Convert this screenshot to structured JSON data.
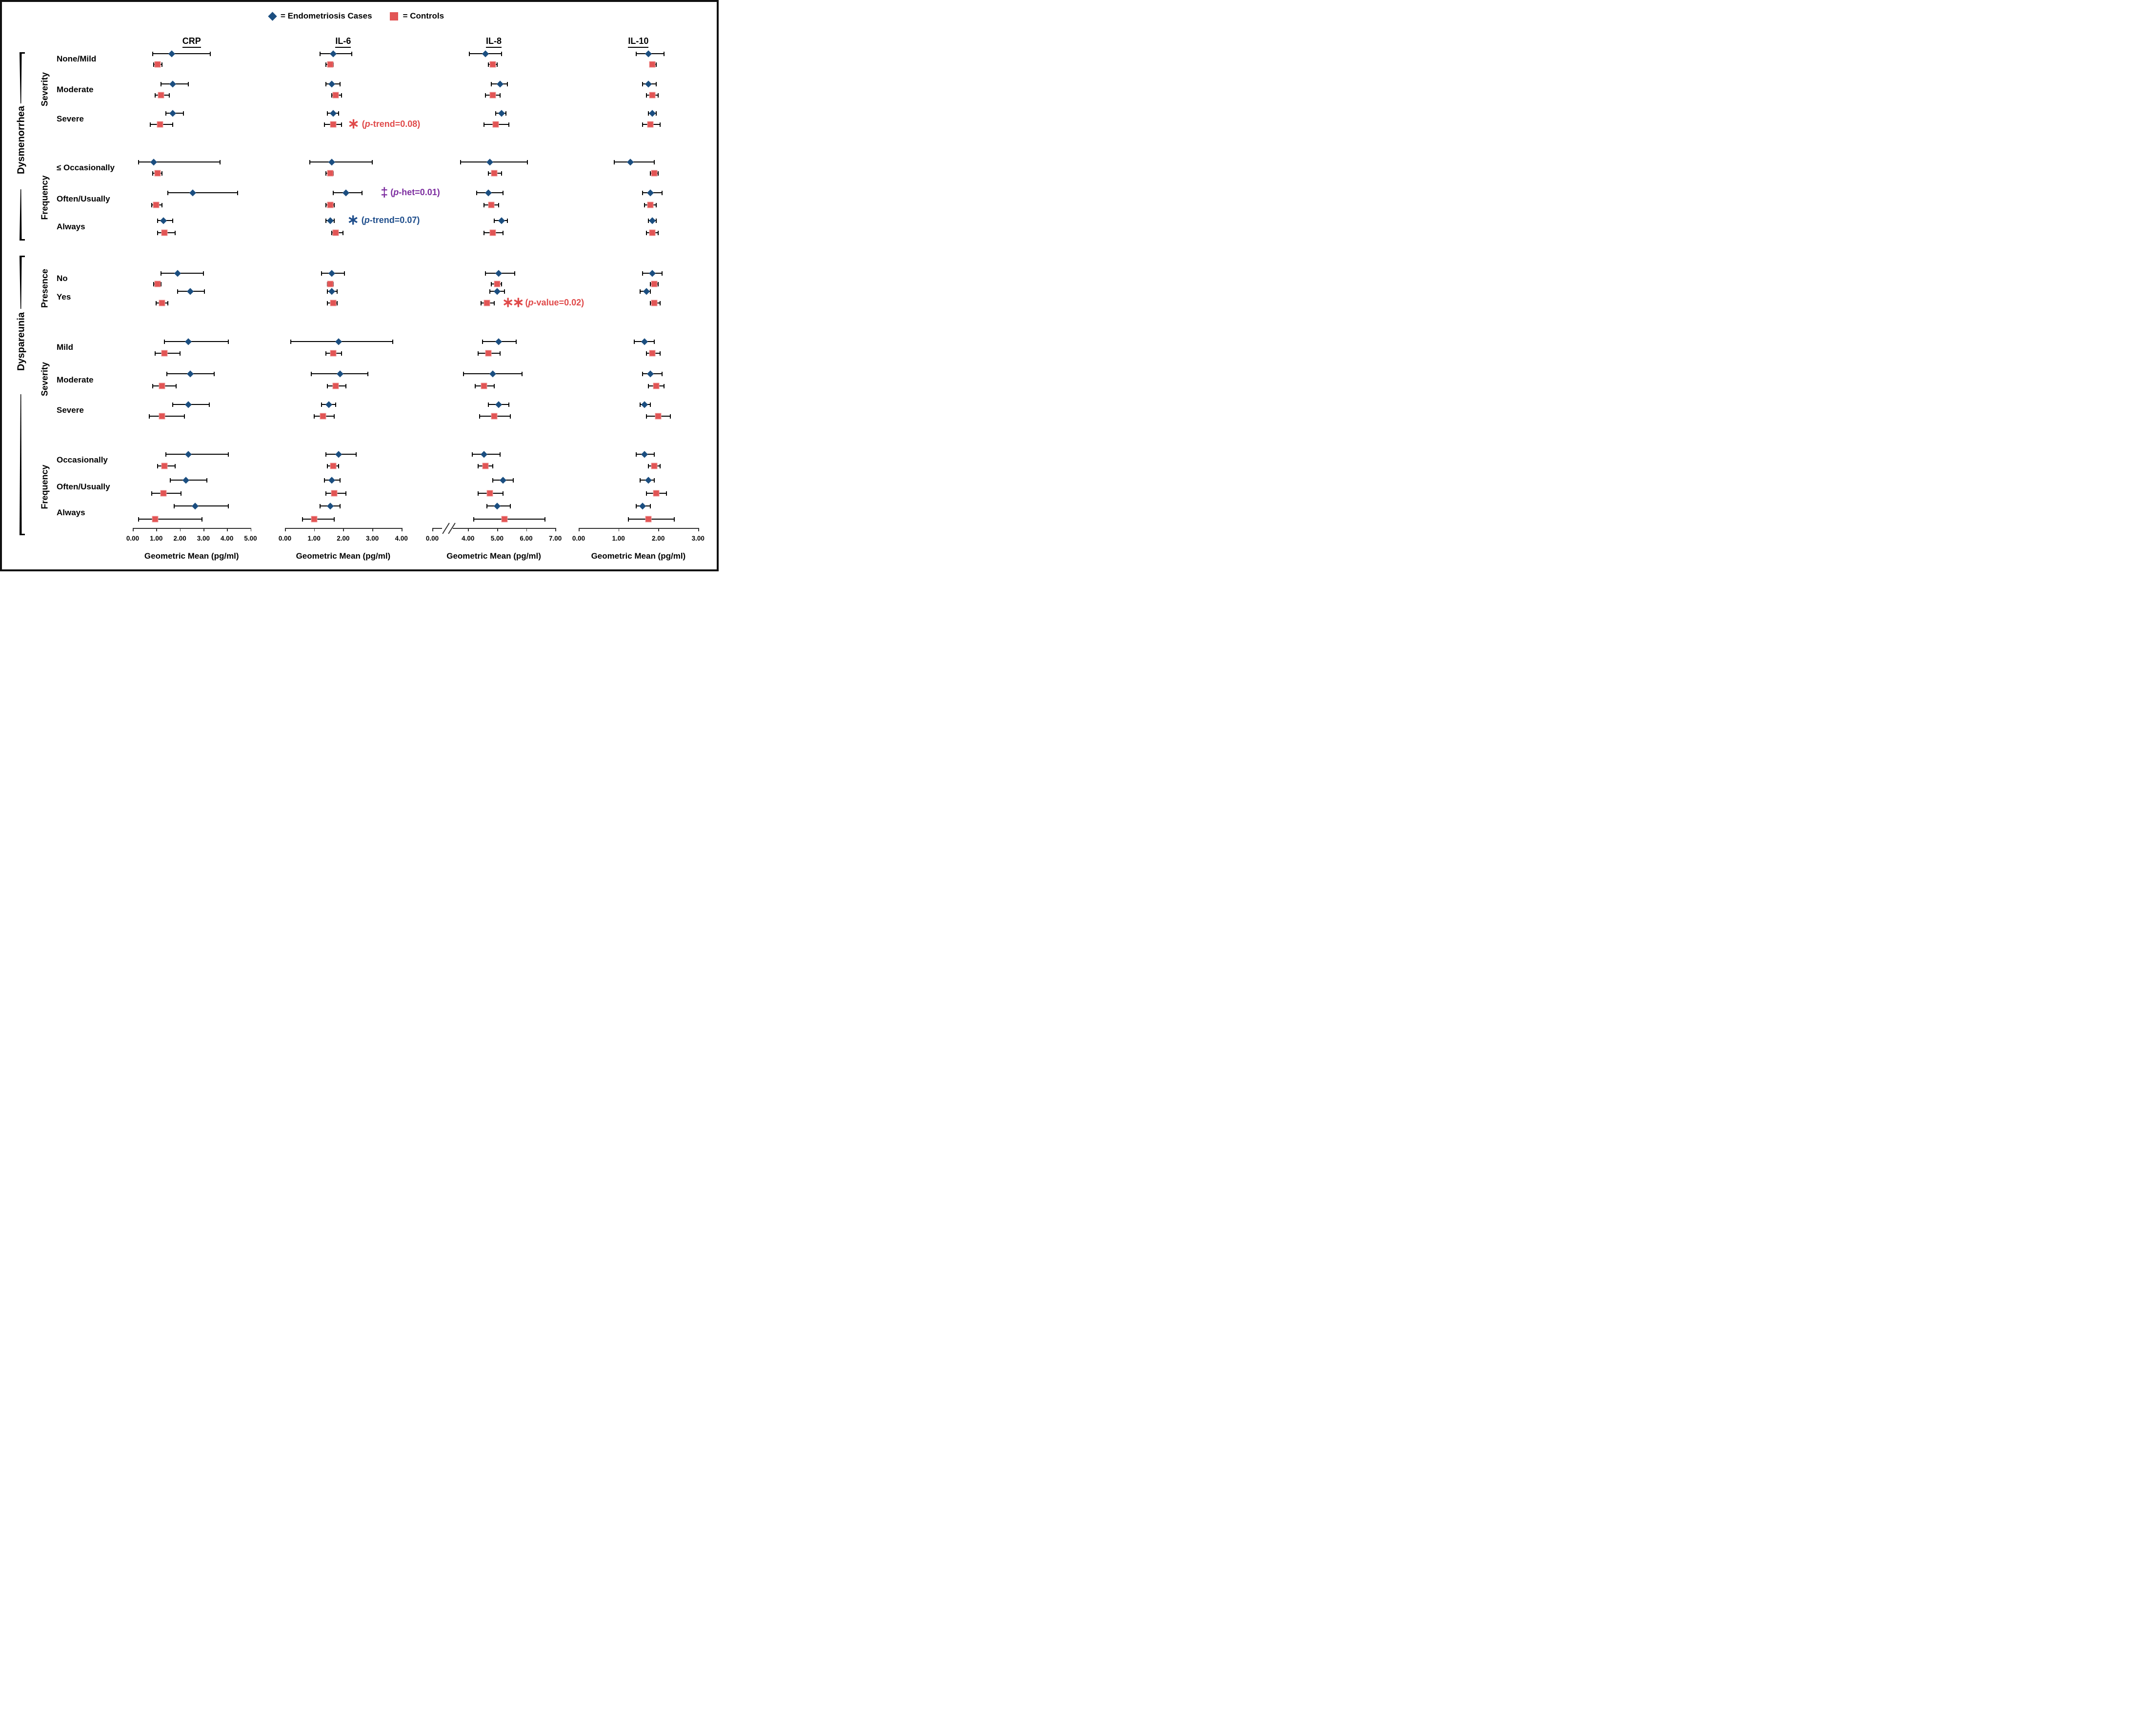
{
  "chart_data": {
    "type": "scatter",
    "subtype": "forest plot — point estimates (geometric means) with 95% CI whiskers, 4 biomarker panels",
    "unit_label": "Geometric Mean (pg/ml)",
    "legend": [
      {
        "series": "cases",
        "marker": "diamond",
        "label": "= Endometriosis Cases",
        "color": "#1b4e80"
      },
      {
        "series": "controls",
        "marker": "square",
        "label": "= Controls",
        "color": "#e25555"
      }
    ],
    "sections": [
      {
        "label": "Dysmenorrhea",
        "subgroups": [
          {
            "label": "Severity",
            "row_start": 0,
            "row_end": 2
          },
          {
            "label": "Frequency",
            "row_start": 3,
            "row_end": 5
          }
        ]
      },
      {
        "label": "Dyspareunia",
        "subgroups": [
          {
            "label": "Presence",
            "row_start": 6,
            "row_end": 7
          },
          {
            "label": "Severity",
            "row_start": 8,
            "row_end": 10
          },
          {
            "label": "Frequency",
            "row_start": 11,
            "row_end": 13
          }
        ]
      }
    ],
    "row_labels": [
      "None/Mild",
      "Moderate",
      "Severe",
      "≤ Occasionally",
      "Often/Usually",
      "Always",
      "No",
      "Yes",
      "Mild",
      "Moderate",
      "Severe",
      "Occasionally",
      "Often/Usually",
      "Always"
    ],
    "panels": [
      {
        "title": "CRP",
        "axis": {
          "min": 0,
          "max": 5,
          "ticks": [
            0,
            1,
            2,
            3,
            4,
            5
          ]
        },
        "cases": [
          {
            "mean": 1.65,
            "lo": 0.85,
            "hi": 3.3
          },
          {
            "mean": 1.7,
            "lo": 1.2,
            "hi": 2.35
          },
          {
            "mean": 1.7,
            "lo": 1.4,
            "hi": 2.15
          },
          {
            "mean": 0.9,
            "lo": 0.25,
            "hi": 3.7
          },
          {
            "mean": 2.55,
            "lo": 1.5,
            "hi": 4.45
          },
          {
            "mean": 1.3,
            "lo": 1.05,
            "hi": 1.7
          },
          {
            "mean": 1.9,
            "lo": 1.2,
            "hi": 3.0
          },
          {
            "mean": 2.45,
            "lo": 1.9,
            "hi": 3.05
          },
          {
            "mean": 2.35,
            "lo": 1.35,
            "hi": 4.05
          },
          {
            "mean": 2.45,
            "lo": 1.45,
            "hi": 3.45
          },
          {
            "mean": 2.35,
            "lo": 1.7,
            "hi": 3.25
          },
          {
            "mean": 2.35,
            "lo": 1.4,
            "hi": 4.05
          },
          {
            "mean": 2.25,
            "lo": 1.6,
            "hi": 3.15
          },
          {
            "mean": 2.65,
            "lo": 1.75,
            "hi": 4.05
          }
        ],
        "controls": [
          {
            "mean": 1.05,
            "lo": 0.9,
            "hi": 1.25
          },
          {
            "mean": 1.2,
            "lo": 0.95,
            "hi": 1.55
          },
          {
            "mean": 1.15,
            "lo": 0.75,
            "hi": 1.7
          },
          {
            "mean": 1.05,
            "lo": 0.85,
            "hi": 1.25
          },
          {
            "mean": 1.0,
            "lo": 0.8,
            "hi": 1.25
          },
          {
            "mean": 1.35,
            "lo": 1.05,
            "hi": 1.8
          },
          {
            "mean": 1.05,
            "lo": 0.9,
            "hi": 1.2
          },
          {
            "mean": 1.25,
            "lo": 1.0,
            "hi": 1.5
          },
          {
            "mean": 1.35,
            "lo": 0.95,
            "hi": 2.0
          },
          {
            "mean": 1.25,
            "lo": 0.85,
            "hi": 1.85
          },
          {
            "mean": 1.25,
            "lo": 0.7,
            "hi": 2.2
          },
          {
            "mean": 1.35,
            "lo": 1.05,
            "hi": 1.8
          },
          {
            "mean": 1.3,
            "lo": 0.8,
            "hi": 2.05
          },
          {
            "mean": 0.95,
            "lo": 0.25,
            "hi": 2.95
          }
        ]
      },
      {
        "title": "IL-6",
        "axis": {
          "min": 0,
          "max": 4,
          "ticks": [
            0,
            1,
            2,
            3,
            4
          ]
        },
        "cases": [
          {
            "mean": 1.65,
            "lo": 1.2,
            "hi": 2.3
          },
          {
            "mean": 1.6,
            "lo": 1.4,
            "hi": 1.9
          },
          {
            "mean": 1.65,
            "lo": 1.45,
            "hi": 1.85
          },
          {
            "mean": 1.6,
            "lo": 0.85,
            "hi": 3.0
          },
          {
            "mean": 2.1,
            "lo": 1.65,
            "hi": 2.65
          },
          {
            "mean": 1.55,
            "lo": 1.4,
            "hi": 1.7
          },
          {
            "mean": 1.6,
            "lo": 1.25,
            "hi": 2.05
          },
          {
            "mean": 1.6,
            "lo": 1.45,
            "hi": 1.8
          },
          {
            "mean": 1.85,
            "lo": 0.2,
            "hi": 3.7
          },
          {
            "mean": 1.9,
            "lo": 0.9,
            "hi": 2.85
          },
          {
            "mean": 1.5,
            "lo": 1.25,
            "hi": 1.75
          },
          {
            "mean": 1.85,
            "lo": 1.4,
            "hi": 2.45
          },
          {
            "mean": 1.6,
            "lo": 1.35,
            "hi": 1.9
          },
          {
            "mean": 1.55,
            "lo": 1.2,
            "hi": 1.9
          }
        ],
        "controls": [
          {
            "mean": 1.55,
            "lo": 1.4,
            "hi": 1.65
          },
          {
            "mean": 1.75,
            "lo": 1.6,
            "hi": 1.95
          },
          {
            "mean": 1.65,
            "lo": 1.35,
            "hi": 1.95
          },
          {
            "mean": 1.55,
            "lo": 1.4,
            "hi": 1.65
          },
          {
            "mean": 1.55,
            "lo": 1.4,
            "hi": 1.7
          },
          {
            "mean": 1.75,
            "lo": 1.6,
            "hi": 2.0
          },
          {
            "mean": 1.55,
            "lo": 1.45,
            "hi": 1.65
          },
          {
            "mean": 1.65,
            "lo": 1.45,
            "hi": 1.8
          },
          {
            "mean": 1.65,
            "lo": 1.4,
            "hi": 1.95
          },
          {
            "mean": 1.75,
            "lo": 1.45,
            "hi": 2.1
          },
          {
            "mean": 1.3,
            "lo": 1.0,
            "hi": 1.7
          },
          {
            "mean": 1.65,
            "lo": 1.45,
            "hi": 1.85
          },
          {
            "mean": 1.7,
            "lo": 1.4,
            "hi": 2.1
          },
          {
            "mean": 1.0,
            "lo": 0.6,
            "hi": 1.7
          }
        ]
      },
      {
        "title": "IL-8",
        "axis": {
          "min": 0,
          "max": 7,
          "ticks": [
            0,
            4,
            5,
            6,
            7
          ],
          "break_between": [
            0,
            4
          ]
        },
        "cases": [
          {
            "mean": 4.6,
            "lo": 4.05,
            "hi": 5.15
          },
          {
            "mean": 5.1,
            "lo": 4.8,
            "hi": 5.35
          },
          {
            "mean": 5.15,
            "lo": 4.95,
            "hi": 5.3
          },
          {
            "mean": 4.75,
            "lo": 3.75,
            "hi": 6.05
          },
          {
            "mean": 4.7,
            "lo": 4.3,
            "hi": 5.2
          },
          {
            "mean": 5.15,
            "lo": 4.9,
            "hi": 5.35
          },
          {
            "mean": 5.05,
            "lo": 4.6,
            "hi": 5.6
          },
          {
            "mean": 5.0,
            "lo": 4.75,
            "hi": 5.25
          },
          {
            "mean": 5.05,
            "lo": 4.5,
            "hi": 5.65
          },
          {
            "mean": 4.85,
            "lo": 3.85,
            "hi": 5.85
          },
          {
            "mean": 5.05,
            "lo": 4.7,
            "hi": 5.4
          },
          {
            "mean": 4.55,
            "lo": 4.15,
            "hi": 5.1
          },
          {
            "mean": 5.2,
            "lo": 4.85,
            "hi": 5.55
          },
          {
            "mean": 5.0,
            "lo": 4.65,
            "hi": 5.45
          }
        ],
        "controls": [
          {
            "mean": 4.85,
            "lo": 4.7,
            "hi": 5.0
          },
          {
            "mean": 4.85,
            "lo": 4.6,
            "hi": 5.1
          },
          {
            "mean": 4.95,
            "lo": 4.55,
            "hi": 5.4
          },
          {
            "mean": 4.9,
            "lo": 4.7,
            "hi": 5.15
          },
          {
            "mean": 4.8,
            "lo": 4.55,
            "hi": 5.05
          },
          {
            "mean": 4.85,
            "lo": 4.55,
            "hi": 5.2
          },
          {
            "mean": 5.0,
            "lo": 4.8,
            "hi": 5.15
          },
          {
            "mean": 4.65,
            "lo": 4.45,
            "hi": 4.9
          },
          {
            "mean": 4.7,
            "lo": 4.35,
            "hi": 5.1
          },
          {
            "mean": 4.55,
            "lo": 4.25,
            "hi": 4.9
          },
          {
            "mean": 4.9,
            "lo": 4.4,
            "hi": 5.45
          },
          {
            "mean": 4.6,
            "lo": 4.35,
            "hi": 4.85
          },
          {
            "mean": 4.75,
            "lo": 4.35,
            "hi": 5.2
          },
          {
            "mean": 5.25,
            "lo": 4.2,
            "hi": 6.65
          }
        ]
      },
      {
        "title": "IL-10",
        "axis": {
          "min": 0,
          "max": 3,
          "ticks": [
            0,
            1,
            2,
            3
          ]
        },
        "cases": [
          {
            "mean": 1.75,
            "lo": 1.45,
            "hi": 2.15
          },
          {
            "mean": 1.75,
            "lo": 1.6,
            "hi": 1.95
          },
          {
            "mean": 1.85,
            "lo": 1.75,
            "hi": 1.95
          },
          {
            "mean": 1.3,
            "lo": 0.9,
            "hi": 1.9
          },
          {
            "mean": 1.8,
            "lo": 1.6,
            "hi": 2.1
          },
          {
            "mean": 1.85,
            "lo": 1.75,
            "hi": 1.95
          },
          {
            "mean": 1.85,
            "lo": 1.6,
            "hi": 2.1
          },
          {
            "mean": 1.7,
            "lo": 1.55,
            "hi": 1.8
          },
          {
            "mean": 1.65,
            "lo": 1.4,
            "hi": 1.9
          },
          {
            "mean": 1.8,
            "lo": 1.6,
            "hi": 2.1
          },
          {
            "mean": 1.65,
            "lo": 1.55,
            "hi": 1.8
          },
          {
            "mean": 1.65,
            "lo": 1.45,
            "hi": 1.9
          },
          {
            "mean": 1.75,
            "lo": 1.55,
            "hi": 1.9
          },
          {
            "mean": 1.6,
            "lo": 1.45,
            "hi": 1.8
          }
        ],
        "controls": [
          {
            "mean": 1.85,
            "lo": 1.8,
            "hi": 1.95
          },
          {
            "mean": 1.85,
            "lo": 1.7,
            "hi": 2.0
          },
          {
            "mean": 1.8,
            "lo": 1.6,
            "hi": 2.05
          },
          {
            "mean": 1.9,
            "lo": 1.8,
            "hi": 2.0
          },
          {
            "mean": 1.8,
            "lo": 1.65,
            "hi": 1.95
          },
          {
            "mean": 1.85,
            "lo": 1.7,
            "hi": 2.0
          },
          {
            "mean": 1.9,
            "lo": 1.8,
            "hi": 2.0
          },
          {
            "mean": 1.9,
            "lo": 1.8,
            "hi": 2.05
          },
          {
            "mean": 1.85,
            "lo": 1.7,
            "hi": 2.05
          },
          {
            "mean": 1.95,
            "lo": 1.75,
            "hi": 2.15
          },
          {
            "mean": 2.0,
            "lo": 1.7,
            "hi": 2.3
          },
          {
            "mean": 1.9,
            "lo": 1.75,
            "hi": 2.05
          },
          {
            "mean": 1.95,
            "lo": 1.7,
            "hi": 2.2
          },
          {
            "mean": 1.75,
            "lo": 1.25,
            "hi": 2.4
          }
        ]
      }
    ],
    "annotations": [
      {
        "panel": "IL-6",
        "panel_index": 1,
        "row": 2,
        "row_label": "Severe",
        "series": "controls",
        "symbol": "∗",
        "text": "(p-trend=0.08)",
        "color": "#e04a4a"
      },
      {
        "panel": "IL-6",
        "panel_index": 1,
        "row": 4,
        "row_label": "Often/Usually",
        "series": "cases",
        "symbol": "‡",
        "text": "(p-het=0.01)",
        "color": "#7d2ea0"
      },
      {
        "panel": "IL-6",
        "panel_index": 1,
        "row": 5,
        "row_label": "Always",
        "series": "cases",
        "symbol": "∗",
        "text": "(p-trend=0.07)",
        "color": "#1f4e8c"
      },
      {
        "panel": "IL-8",
        "panel_index": 2,
        "row": 7,
        "row_label": "Yes",
        "series": "controls",
        "symbol": "∗∗",
        "text": "(p-value=0.02)",
        "color": "#e04a4a"
      }
    ],
    "layout_hints": {
      "grid": false,
      "legend_position": "top-center",
      "ci_style": "capped horizontal whiskers",
      "x_axis_note": "IL-8 axis has a break between 0.00 and 4.00"
    }
  }
}
